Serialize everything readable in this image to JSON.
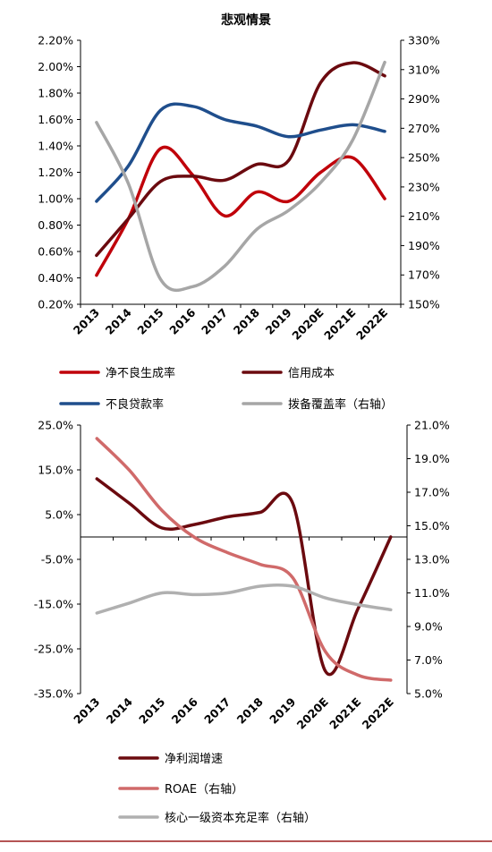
{
  "chart_data": [
    {
      "type": "line",
      "title": "悲观情景",
      "categories": [
        "2013",
        "2014",
        "2015",
        "2016",
        "2017",
        "2018",
        "2019",
        "2020E",
        "2021E",
        "2022E"
      ],
      "y_left": {
        "ylim": [
          0.2,
          2.2
        ],
        "ticks": [
          "0.20%",
          "0.40%",
          "0.60%",
          "0.80%",
          "1.00%",
          "1.20%",
          "1.40%",
          "1.60%",
          "1.80%",
          "2.00%",
          "2.20%"
        ],
        "tick_values": [
          0.2,
          0.4,
          0.6,
          0.8,
          1.0,
          1.2,
          1.4,
          1.6,
          1.8,
          2.0,
          2.2
        ]
      },
      "y_right": {
        "ylim": [
          150,
          330
        ],
        "ticks": [
          "150%",
          "170%",
          "190%",
          "210%",
          "230%",
          "250%",
          "270%",
          "290%",
          "310%",
          "330%"
        ],
        "tick_values": [
          150,
          170,
          190,
          210,
          230,
          250,
          270,
          290,
          310,
          330
        ]
      },
      "series": [
        {
          "name": "净不良生成率",
          "axis": "left",
          "color": "#c0000a",
          "values": [
            0.42,
            0.85,
            1.38,
            1.18,
            0.87,
            1.05,
            0.98,
            1.2,
            1.31,
            1.0
          ]
        },
        {
          "name": "信用成本",
          "axis": "left",
          "color": "#6b0a0f",
          "values": [
            0.57,
            0.85,
            1.13,
            1.17,
            1.14,
            1.26,
            1.29,
            1.88,
            2.03,
            1.93
          ]
        },
        {
          "name": "不良贷款率",
          "axis": "left",
          "color": "#1f4e8c",
          "values": [
            0.98,
            1.25,
            1.67,
            1.7,
            1.6,
            1.55,
            1.47,
            1.52,
            1.56,
            1.51
          ]
        },
        {
          "name": "拨备覆盖率（右轴）",
          "axis": "right",
          "color": "#a6a6a6",
          "values": [
            274,
            232,
            167,
            162,
            176,
            201,
            214,
            233,
            262,
            315
          ]
        }
      ],
      "legend": "bottom"
    },
    {
      "type": "line",
      "title": "",
      "categories": [
        "2013",
        "2014",
        "2015",
        "2016",
        "2017",
        "2018",
        "2019",
        "2020E",
        "2021E",
        "2022E"
      ],
      "y_left": {
        "ylim": [
          -35,
          25
        ],
        "ticks": [
          "25.0%",
          "15.0%",
          "5.0%",
          "-5.0%",
          "-15.0%",
          "-25.0%",
          "-35.0%"
        ],
        "tick_values": [
          25,
          15,
          5,
          -5,
          -15,
          -25,
          -35
        ]
      },
      "y_right": {
        "ylim": [
          5,
          21
        ],
        "ticks": [
          "21.0%",
          "19.0%",
          "17.0%",
          "15.0%",
          "13.0%",
          "11.0%",
          "9.0%",
          "7.0%",
          "5.0%"
        ],
        "tick_values": [
          21,
          19,
          17,
          15,
          13,
          11,
          9,
          7,
          5
        ]
      },
      "series": [
        {
          "name": "净利润增速",
          "axis": "left",
          "color": "#6b0a0f",
          "values": [
            13.0,
            7.5,
            2.0,
            2.8,
            4.5,
            5.5,
            7.5,
            -30.0,
            -16.0,
            0.0
          ]
        },
        {
          "name": "ROAE（右轴）",
          "axis": "right",
          "color": "#d06a6a",
          "values": [
            20.2,
            18.3,
            15.9,
            14.3,
            13.4,
            12.7,
            11.9,
            7.5,
            6.1,
            5.8
          ]
        },
        {
          "name": "核心一级资本充足率（右轴）",
          "axis": "right",
          "color": "#b0b0b0",
          "values": [
            9.8,
            10.4,
            11.0,
            10.9,
            11.0,
            11.4,
            11.4,
            10.7,
            10.3,
            10.0
          ]
        }
      ],
      "legend": "bottom"
    }
  ]
}
